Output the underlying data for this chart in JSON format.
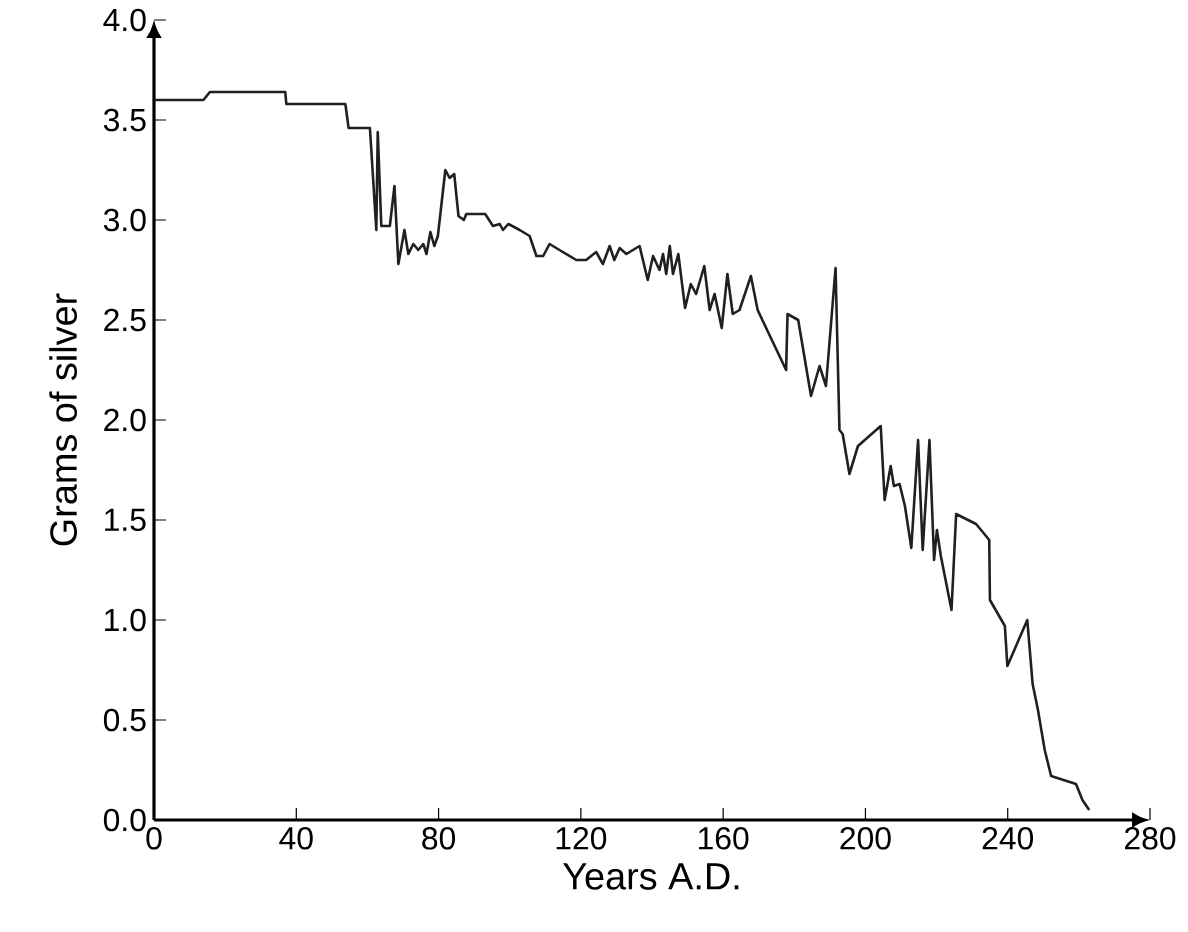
{
  "chart_data": {
    "type": "line",
    "xlabel": "Years A.D.",
    "ylabel": "Grams of silver",
    "xlim": [
      0,
      280
    ],
    "ylim": [
      0,
      4
    ],
    "xticks": [
      0,
      40,
      80,
      120,
      160,
      200,
      240,
      280
    ],
    "yticks": [
      {
        "value": 0,
        "label": "0.0"
      },
      {
        "value": 0.5,
        "label": "0.5"
      },
      {
        "value": 1,
        "label": "1.0"
      },
      {
        "value": 1.5,
        "label": "1.5"
      },
      {
        "value": 2,
        "label": "2.0"
      },
      {
        "value": 2.5,
        "label": "2.5"
      },
      {
        "value": 3,
        "label": "3.0"
      },
      {
        "value": 3.5,
        "label": "3.5"
      },
      {
        "value": 4,
        "label": "4.0"
      }
    ],
    "grid": false,
    "marker": "none",
    "line_style": "solid",
    "x": [
      0,
      13.9,
      15.7,
      36.9,
      37.2,
      53.8,
      54.7,
      60.7,
      62.5,
      62.9,
      63.9,
      66.3,
      67.6,
      68.7,
      70.4,
      71.5,
      72.9,
      74.3,
      75.7,
      76.6,
      77.7,
      78.8,
      79.8,
      81.9,
      83.1,
      84.4,
      85.6,
      87.1,
      87.8,
      93.1,
      95.3,
      97.2,
      98.1,
      99.6,
      102.8,
      105.6,
      107.5,
      109.4,
      111.2,
      114,
      118.7,
      121.5,
      124.3,
      126.2,
      128.1,
      129.4,
      130.9,
      132.8,
      136.5,
      138.8,
      140.3,
      142.1,
      143.1,
      144,
      145,
      145.9,
      147.4,
      149.3,
      150.9,
      152.4,
      154.7,
      156.2,
      157.6,
      159.6,
      161.2,
      162.7,
      164.6,
      167.8,
      169.7,
      177.7,
      178.1,
      181.1,
      184.7,
      187.1,
      188.9,
      191.6,
      192.7,
      193.6,
      195.5,
      197.9,
      204.3,
      205.4,
      207.1,
      208,
      209.6,
      211.1,
      212.9,
      214.8,
      216.1,
      218,
      219.3,
      220.1,
      221.2,
      224.2,
      225.5,
      231.1,
      233.9,
      234.8,
      235,
      239.2,
      239.9,
      245.5,
      247,
      248.5,
      250.4,
      252.2,
      259.2,
      261,
      262.9
    ],
    "series": [
      {
        "color": "#231f20",
        "values": [
          3.6,
          3.6,
          3.64,
          3.64,
          3.58,
          3.58,
          3.46,
          3.46,
          2.95,
          3.44,
          2.97,
          2.97,
          3.17,
          2.78,
          2.95,
          2.83,
          2.88,
          2.85,
          2.88,
          2.83,
          2.94,
          2.87,
          2.92,
          3.25,
          3.21,
          3.23,
          3.02,
          3.0,
          3.03,
          3.03,
          2.97,
          2.98,
          2.95,
          2.98,
          2.95,
          2.92,
          2.82,
          2.82,
          2.88,
          2.85,
          2.8,
          2.8,
          2.84,
          2.78,
          2.87,
          2.8,
          2.86,
          2.83,
          2.87,
          2.7,
          2.82,
          2.75,
          2.83,
          2.73,
          2.87,
          2.73,
          2.83,
          2.56,
          2.68,
          2.63,
          2.77,
          2.55,
          2.63,
          2.46,
          2.73,
          2.53,
          2.55,
          2.72,
          2.55,
          2.25,
          2.53,
          2.5,
          2.12,
          2.27,
          2.17,
          2.76,
          1.95,
          1.93,
          1.73,
          1.87,
          1.97,
          1.6,
          1.77,
          1.67,
          1.68,
          1.57,
          1.36,
          1.9,
          1.35,
          1.9,
          1.3,
          1.45,
          1.32,
          1.05,
          1.53,
          1.48,
          1.42,
          1.4,
          1.1,
          0.97,
          0.77,
          1.0,
          0.68,
          0.55,
          0.35,
          0.22,
          0.18,
          0.1,
          0.05
        ]
      }
    ]
  }
}
